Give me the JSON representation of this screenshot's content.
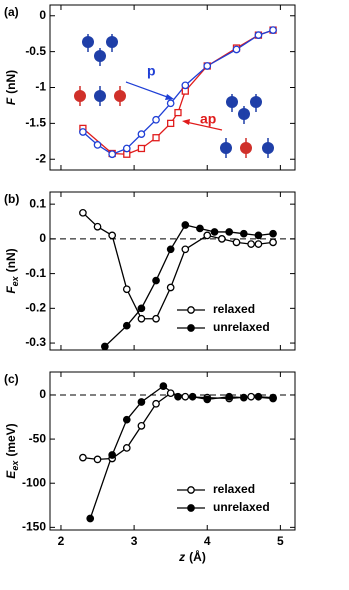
{
  "chart_data": [
    {
      "type": "line",
      "panel_label": "(a)",
      "ylabel_symbol": "F",
      "ylabel_unit": "(nN)",
      "xlim": [
        1.85,
        5.2
      ],
      "xticks": [
        2,
        3,
        4,
        5
      ],
      "show_xtick_labels": false,
      "ylim": [
        -2.15,
        0.15
      ],
      "yticks": [
        0,
        -0.5,
        -1,
        -1.5,
        -2
      ],
      "zero_line": false,
      "annotations": [
        {
          "text": "p",
          "color": "#1f3fd6"
        },
        {
          "text": "ap",
          "color": "#e01b1b"
        }
      ],
      "series": [
        {
          "name": "ap",
          "color": "#e01b1b",
          "marker": "square",
          "filled": false,
          "x": [
            2.3,
            2.7,
            2.9,
            3.1,
            3.3,
            3.5,
            3.6,
            3.7,
            4.0,
            4.4,
            4.7,
            4.9
          ],
          "values": [
            -1.57,
            -1.92,
            -1.93,
            -1.85,
            -1.7,
            -1.5,
            -1.35,
            -1.05,
            -0.7,
            -0.45,
            -0.27,
            -0.2
          ]
        },
        {
          "name": "p",
          "color": "#1f3fd6",
          "marker": "circle",
          "filled": false,
          "x": [
            2.3,
            2.5,
            2.7,
            2.9,
            3.1,
            3.3,
            3.5,
            3.7,
            4.0,
            4.4,
            4.7,
            4.9
          ],
          "values": [
            -1.62,
            -1.8,
            -1.93,
            -1.85,
            -1.65,
            -1.45,
            -1.22,
            -0.97,
            -0.7,
            -0.47,
            -0.27,
            -0.2
          ]
        }
      ]
    },
    {
      "type": "line",
      "panel_label": "(b)",
      "ylabel_symbol": "F",
      "ylabel_sub": "ex",
      "ylabel_unit": "(nN)",
      "xlim": [
        1.85,
        5.2
      ],
      "xticks": [
        2,
        3,
        4,
        5
      ],
      "show_xtick_labels": false,
      "ylim": [
        -0.32,
        0.135
      ],
      "yticks": [
        0.1,
        0,
        -0.1,
        -0.2,
        -0.3
      ],
      "zero_line": true,
      "legend": "lower right",
      "series": [
        {
          "name": "relaxed",
          "color": "#000000",
          "marker": "circle",
          "filled": false,
          "x": [
            2.3,
            2.5,
            2.7,
            2.9,
            3.1,
            3.3,
            3.5,
            3.7,
            4.0,
            4.2,
            4.4,
            4.6,
            4.7,
            4.9
          ],
          "values": [
            0.075,
            0.035,
            0.01,
            -0.145,
            -0.23,
            -0.23,
            -0.14,
            -0.03,
            0.01,
            0.0,
            -0.01,
            -0.015,
            -0.015,
            -0.01
          ]
        },
        {
          "name": "unrelaxed",
          "color": "#000000",
          "marker": "circle",
          "filled": true,
          "x": [
            2.6,
            2.9,
            3.1,
            3.3,
            3.5,
            3.7,
            3.9,
            4.1,
            4.3,
            4.5,
            4.7,
            4.9
          ],
          "values": [
            -0.31,
            -0.25,
            -0.2,
            -0.12,
            -0.03,
            0.04,
            0.03,
            0.02,
            0.02,
            0.015,
            0.01,
            0.015
          ]
        }
      ]
    },
    {
      "type": "line",
      "panel_label": "(c)",
      "ylabel_symbol": "E",
      "ylabel_sub": "ex",
      "ylabel_unit": "(meV)",
      "xlabel_symbol": "z",
      "xlabel_unit": "(Å)",
      "xlim": [
        1.85,
        5.2
      ],
      "xticks": [
        2,
        3,
        4,
        5
      ],
      "show_xtick_labels": true,
      "ylim": [
        -153,
        26
      ],
      "yticks": [
        0,
        -50,
        -100,
        -150
      ],
      "zero_line": true,
      "legend": "lower right",
      "series": [
        {
          "name": "relaxed",
          "color": "#000000",
          "marker": "circle",
          "filled": false,
          "x": [
            2.3,
            2.5,
            2.7,
            2.9,
            3.1,
            3.3,
            3.5,
            3.7,
            4.0,
            4.3,
            4.6,
            4.9
          ],
          "values": [
            -71,
            -73,
            -72,
            -60,
            -35,
            -10,
            2,
            -2,
            -3,
            -4,
            -2,
            -4
          ]
        },
        {
          "name": "unrelaxed",
          "color": "#000000",
          "marker": "circle",
          "filled": true,
          "x": [
            2.4,
            2.7,
            2.9,
            3.1,
            3.4,
            3.6,
            3.8,
            4.0,
            4.3,
            4.5,
            4.7,
            4.9
          ],
          "values": [
            -140,
            -68,
            -28,
            -8,
            10,
            -2,
            -2,
            -5,
            -2,
            -3,
            -2,
            -3
          ]
        }
      ]
    }
  ]
}
